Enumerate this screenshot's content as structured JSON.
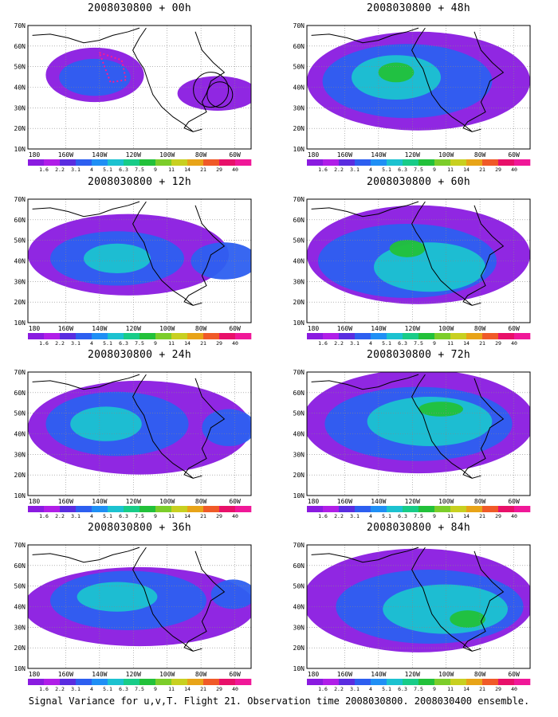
{
  "lat_ticks": [
    "70N",
    "60N",
    "50N",
    "40N",
    "30N",
    "20N",
    "10N"
  ],
  "lon_ticks": [
    "180",
    "160W",
    "140W",
    "120W",
    "100W",
    "80W",
    "60W"
  ],
  "colorbar": {
    "labels": [
      "1.6",
      "2.2",
      "3.1",
      "4",
      "5.1",
      "6.3",
      "7.5",
      "9",
      "11",
      "14",
      "21",
      "29",
      "40"
    ],
    "colors": [
      "#8a1be0",
      "#b01ee8",
      "#5a2de0",
      "#2d5ff0",
      "#1f8ff5",
      "#1cc2d0",
      "#18cc88",
      "#22c13a",
      "#7ccd2a",
      "#c8d020",
      "#e8a418",
      "#f05a28",
      "#e8106a",
      "#f01898"
    ]
  },
  "panels": [
    {
      "title": "2008030800 + 00h",
      "col": 0,
      "row": 0
    },
    {
      "title": "2008030800 + 48h",
      "col": 1,
      "row": 0
    },
    {
      "title": "2008030800 + 12h",
      "col": 0,
      "row": 1
    },
    {
      "title": "2008030800 + 60h",
      "col": 1,
      "row": 1
    },
    {
      "title": "2008030800 + 24h",
      "col": 0,
      "row": 2
    },
    {
      "title": "2008030800 + 72h",
      "col": 1,
      "row": 2
    },
    {
      "title": "2008030800 + 36h",
      "col": 0,
      "row": 3
    },
    {
      "title": "2008030800 + 84h",
      "col": 1,
      "row": 3
    }
  ],
  "caption": "Signal Variance for u,v,T. Flight 21. Observation time 2008030800. 2008030400 ensemble."
}
